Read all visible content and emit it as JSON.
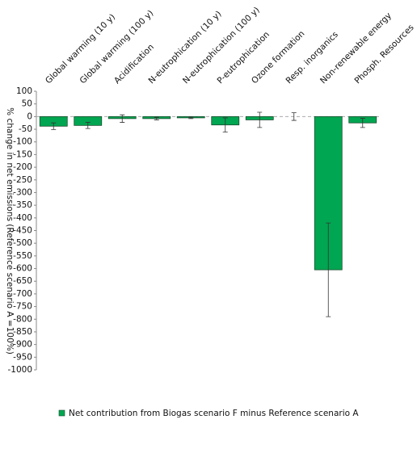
{
  "chart_data": {
    "type": "bar",
    "y_label": "% change in net emissions (Reference scenario A =100%)",
    "categories": [
      "Global warming (10 y)",
      "Global warming (100 y)",
      "Acidification",
      "N-eutrophication (10 y)",
      "N-eutrophication (100 y)",
      "P-eutrophication",
      "Ozone formation",
      "Resp. inorganics",
      "Non-renewable energy",
      "Phosph. Resources"
    ],
    "series": [
      {
        "name": "Net contribution from Biogas scenario F minus Reference scenario A",
        "color": "#00a651",
        "values": [
          -38,
          -35,
          -8,
          -8,
          -5,
          -33,
          -13,
          0,
          -605,
          -25
        ],
        "errors": [
          13,
          12,
          15,
          5,
          3,
          28,
          30,
          15,
          185,
          18
        ]
      }
    ],
    "ylim": [
      -1000,
      100
    ],
    "yticks": [
      100,
      50,
      0,
      -50,
      -100,
      -150,
      -200,
      -250,
      -300,
      -350,
      -400,
      -450,
      -500,
      -550,
      -600,
      -650,
      -700,
      -750,
      -800,
      -850,
      -900,
      -950,
      -1000
    ],
    "grid": false,
    "legend": "bottom"
  }
}
